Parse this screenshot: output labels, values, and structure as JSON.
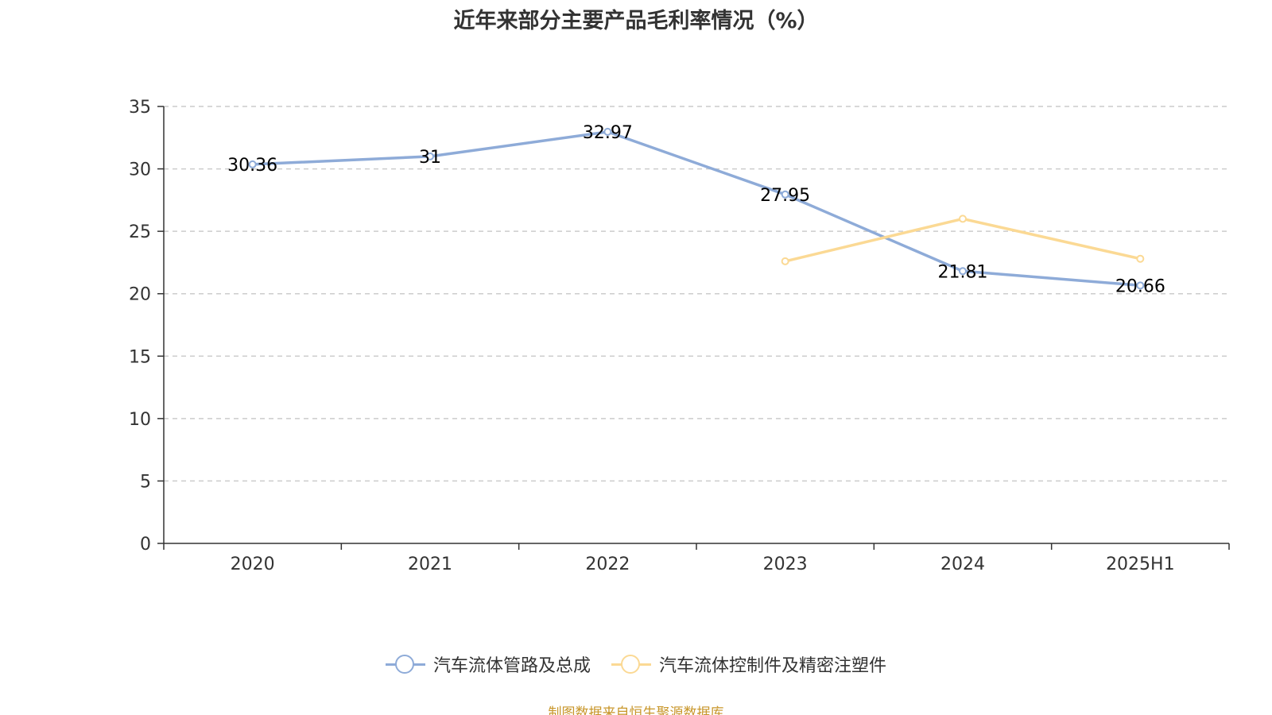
{
  "chart_data": {
    "type": "line",
    "title": "近年来部分主要产品毛利率情况（%）",
    "categories": [
      "2020",
      "2021",
      "2022",
      "2023",
      "2024",
      "2025H1"
    ],
    "ylim": [
      0,
      35
    ],
    "yticks": [
      0,
      5,
      10,
      15,
      20,
      25,
      30,
      35
    ],
    "grid": true,
    "legend_position": "bottom",
    "series": [
      {
        "name": "汽车流体管路及总成",
        "color": "#8eabd8",
        "values": [
          30.36,
          31,
          32.97,
          27.95,
          21.81,
          20.66
        ],
        "labels": [
          "30.36",
          "31",
          "32.97",
          "27.95",
          "21.81",
          "20.66"
        ]
      },
      {
        "name": "汽车流体控制件及精密注塑件",
        "color": "#fbd994",
        "values": [
          null,
          null,
          null,
          22.6,
          26.0,
          22.8
        ],
        "labels": [
          null,
          null,
          null,
          null,
          null,
          null
        ]
      }
    ]
  },
  "source_note": "制图数据来自恒生聚源数据库"
}
